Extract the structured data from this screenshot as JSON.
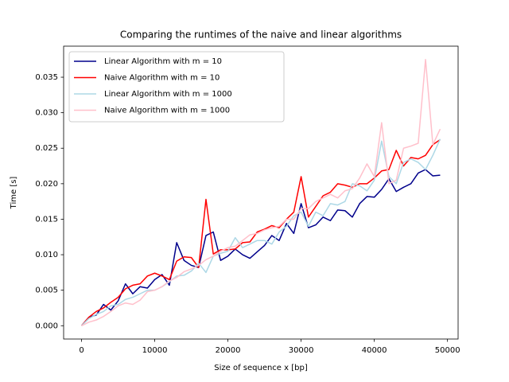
{
  "chart_data": {
    "type": "line",
    "title": "Comparing the runtimes of the naive and linear algorithms",
    "x_label": "Size of sequence x [bp]",
    "y_label": "Time [s]",
    "legend": "upper left",
    "grid": false,
    "x": [
      0,
      1000,
      2000,
      3000,
      4000,
      5000,
      6000,
      7000,
      8000,
      9000,
      10000,
      11000,
      12000,
      13000,
      14000,
      15000,
      16000,
      17000,
      18000,
      19000,
      20000,
      21000,
      22000,
      23000,
      24000,
      25000,
      26000,
      27000,
      28000,
      29000,
      30000,
      31000,
      32000,
      33000,
      34000,
      35000,
      36000,
      37000,
      38000,
      39000,
      40000,
      41000,
      42000,
      43000,
      44000,
      45000,
      46000,
      47000,
      48000,
      49000
    ],
    "xlim": [
      -2450,
      51450
    ],
    "xticks": [
      0,
      10000,
      20000,
      30000,
      40000,
      50000
    ],
    "ylim": [
      -0.001875,
      0.039375
    ],
    "yticks": [
      {
        "value": 0,
        "label": "0.000"
      },
      {
        "value": 0.005,
        "label": "0.005"
      },
      {
        "value": 0.01,
        "label": "0.010"
      },
      {
        "value": 0.015,
        "label": "0.015"
      },
      {
        "value": 0.02,
        "label": "0.020"
      },
      {
        "value": 0.025,
        "label": "0.025"
      },
      {
        "value": 0.03,
        "label": "0.030"
      },
      {
        "value": 0.035,
        "label": "0.035"
      }
    ],
    "series": [
      {
        "name": "Linear Algorithm with m = 10",
        "color": "#00008b",
        "values": [
          0,
          0.0012,
          0.0015,
          0.003,
          0.0022,
          0.0035,
          0.0059,
          0.0045,
          0.0055,
          0.0053,
          0.0065,
          0.0072,
          0.0057,
          0.0117,
          0.0092,
          0.0085,
          0.0082,
          0.0127,
          0.0132,
          0.0092,
          0.0098,
          0.0108,
          0.01,
          0.0095,
          0.0104,
          0.0113,
          0.0127,
          0.012,
          0.0144,
          0.013,
          0.0172,
          0.0138,
          0.0142,
          0.0153,
          0.0148,
          0.0163,
          0.0162,
          0.0153,
          0.0172,
          0.0182,
          0.0181,
          0.0192,
          0.0207,
          0.0189,
          0.0195,
          0.02,
          0.0215,
          0.022,
          0.0211,
          0.0212
        ]
      },
      {
        "name": "Naive Algorithm with m = 10",
        "color": "#ff0000",
        "values": [
          0,
          0.0012,
          0.002,
          0.0025,
          0.0033,
          0.004,
          0.0052,
          0.0057,
          0.0059,
          0.007,
          0.0074,
          0.007,
          0.0065,
          0.0091,
          0.0097,
          0.0096,
          0.0082,
          0.0178,
          0.0101,
          0.0107,
          0.0107,
          0.0108,
          0.0117,
          0.0118,
          0.0132,
          0.0136,
          0.0141,
          0.0138,
          0.015,
          0.016,
          0.021,
          0.0153,
          0.0168,
          0.0183,
          0.0188,
          0.02,
          0.0198,
          0.0195,
          0.02,
          0.02,
          0.0208,
          0.0218,
          0.022,
          0.0247,
          0.0225,
          0.0237,
          0.0235,
          0.024,
          0.0255,
          0.0262
        ]
      },
      {
        "name": "Linear Algorithm with m = 1000",
        "color": "#add8e6",
        "values": [
          0,
          0.001,
          0.0016,
          0.002,
          0.0028,
          0.003,
          0.0037,
          0.004,
          0.0045,
          0.005,
          0.005,
          0.0055,
          0.0062,
          0.007,
          0.0071,
          0.0077,
          0.0088,
          0.0075,
          0.0098,
          0.0102,
          0.0105,
          0.0124,
          0.011,
          0.0115,
          0.012,
          0.012,
          0.0115,
          0.0132,
          0.014,
          0.0155,
          0.016,
          0.014,
          0.016,
          0.0155,
          0.0172,
          0.017,
          0.0175,
          0.02,
          0.0197,
          0.019,
          0.0205,
          0.026,
          0.021,
          0.02,
          0.023,
          0.0235,
          0.023,
          0.022,
          0.024,
          0.0263
        ]
      },
      {
        "name": "Naive Algorithm with m = 1000",
        "color": "#ffc0cb",
        "values": [
          0,
          0.0005,
          0.0008,
          0.0013,
          0.002,
          0.0028,
          0.0032,
          0.003,
          0.0036,
          0.0048,
          0.005,
          0.0055,
          0.0063,
          0.0068,
          0.0076,
          0.008,
          0.0085,
          0.0093,
          0.0098,
          0.0105,
          0.011,
          0.0112,
          0.012,
          0.0128,
          0.013,
          0.0135,
          0.0138,
          0.014,
          0.015,
          0.015,
          0.0165,
          0.0165,
          0.0175,
          0.018,
          0.0185,
          0.018,
          0.019,
          0.0193,
          0.0208,
          0.0228,
          0.021,
          0.0286,
          0.02,
          0.0205,
          0.025,
          0.0253,
          0.0257,
          0.0375,
          0.0255,
          0.0277
        ]
      }
    ]
  }
}
